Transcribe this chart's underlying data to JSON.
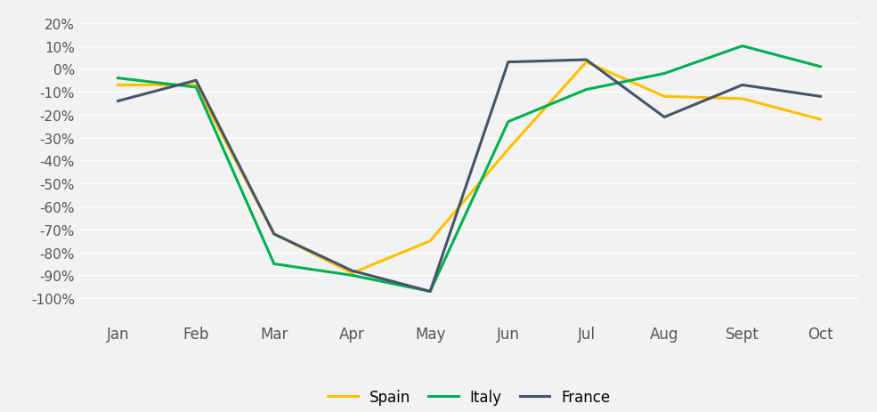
{
  "months": [
    "Jan",
    "Feb",
    "Mar",
    "Apr",
    "May",
    "Jun",
    "Jul",
    "Aug",
    "Sept",
    "Oct"
  ],
  "spain": [
    -7,
    -7,
    -72,
    -89,
    -75,
    -35,
    3,
    -12,
    -13,
    -22
  ],
  "italy": [
    -4,
    -8,
    -85,
    -90,
    -97,
    -23,
    -9,
    -2,
    10,
    1
  ],
  "france": [
    -14,
    -5,
    -72,
    -88,
    -97,
    3,
    4,
    -21,
    -7,
    -12
  ],
  "spain_color": "#FFC000",
  "italy_color": "#00B050",
  "france_color": "#44546A",
  "legend_labels": [
    "Spain",
    "Italy",
    "France"
  ],
  "ylim": [
    -110,
    25
  ],
  "yticks": [
    20,
    10,
    0,
    -10,
    -20,
    -30,
    -40,
    -50,
    -60,
    -70,
    -80,
    -90,
    -100
  ],
  "background_color": "#f2f2f2",
  "grid_color": "#ffffff",
  "line_width": 2.2,
  "legend_marker_color_spain": "#FFC000",
  "legend_marker_color_italy": "#00B050",
  "legend_marker_color_france": "#44546A"
}
